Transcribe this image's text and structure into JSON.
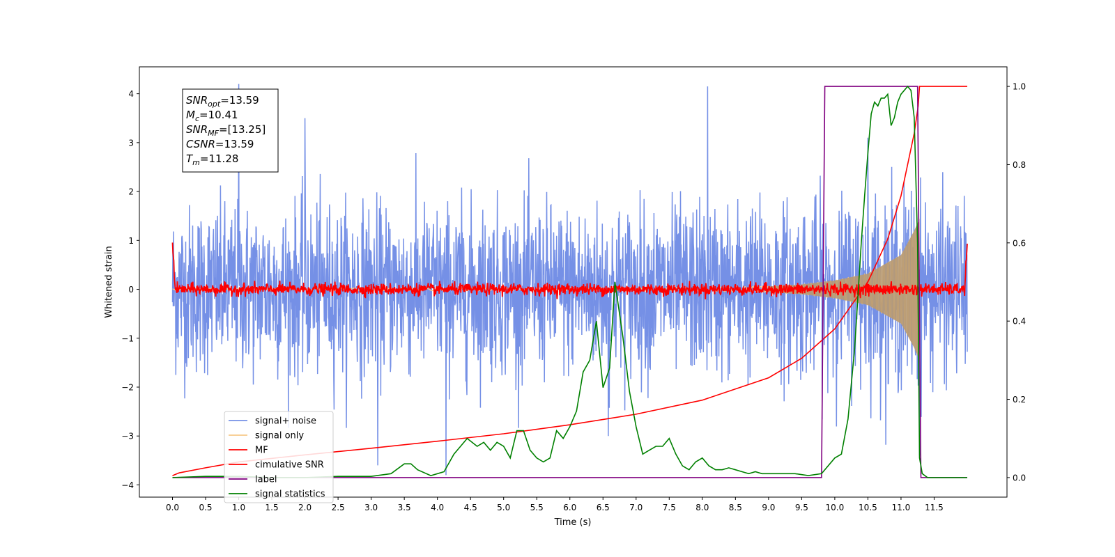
{
  "chart_data": {
    "type": "line",
    "xlabel": "Time (s)",
    "ylabel": "Whitened strain",
    "xlim": [
      -0.5,
      12.6
    ],
    "ylim": [
      -4.25,
      4.55
    ],
    "y2lim": [
      -0.05,
      1.05
    ],
    "x_ticks": [
      0.0,
      0.5,
      1.0,
      1.5,
      2.0,
      2.5,
      3.0,
      3.5,
      4.0,
      4.5,
      5.0,
      5.5,
      6.0,
      6.5,
      7.0,
      7.5,
      8.0,
      8.5,
      9.0,
      9.5,
      10.0,
      10.5,
      11.0,
      11.5
    ],
    "x_tick_labels": [
      "0.0",
      "0.5",
      "1.0",
      "1.5",
      "2.0",
      "2.5",
      "3.0",
      "3.5",
      "4.0",
      "4.5",
      "5.0",
      "5.5",
      "6.0",
      "6.5",
      "7.0",
      "7.5",
      "8.0",
      "8.5",
      "9.0",
      "9.5",
      "10.0",
      "10.5",
      "11.0",
      "11.5"
    ],
    "y_ticks": [
      -4,
      -3,
      -2,
      -1,
      0,
      1,
      2,
      3,
      4
    ],
    "y_tick_labels": [
      "−4",
      "−3",
      "−2",
      "−1",
      "0",
      "1",
      "2",
      "3",
      "4"
    ],
    "y2_ticks": [
      0.0,
      0.2,
      0.4,
      0.6,
      0.8,
      1.0
    ],
    "y2_tick_labels": [
      "0.0",
      "0.2",
      "0.4",
      "0.6",
      "0.8",
      "1.0"
    ],
    "legend_position": "lower-left",
    "annotation": {
      "lines": [
        {
          "base": "SNR",
          "sub": "opt",
          "value": "=13.59"
        },
        {
          "base": "M",
          "sub": "c",
          "value": "=10.41"
        },
        {
          "base": "SNR",
          "sub": "MF",
          "value": "=[13.25]"
        },
        {
          "base": "CSNR",
          "sub": "",
          "value": "=13.59"
        },
        {
          "base": "T",
          "sub": "m",
          "value": "=11.28"
        }
      ]
    },
    "series": [
      {
        "name": "signal+ noise",
        "color": "#7590e6",
        "axis": "left",
        "kind": "noise",
        "envelope_x": [
          0,
          4,
          8,
          10,
          11,
          11.28,
          11.3,
          12
        ],
        "envelope_upper": [
          2.1,
          2.1,
          2.1,
          2.2,
          2.4,
          2.8,
          2.2,
          2.1
        ],
        "envelope_lower": [
          -2.1,
          -2.1,
          -2.1,
          -2.2,
          -2.4,
          -2.8,
          -2.2,
          -2.1
        ],
        "spikes": [
          [
            1.0,
            4.2
          ],
          [
            2.0,
            3.5
          ],
          [
            4.13,
            -3.8
          ],
          [
            8.08,
            4.15
          ],
          [
            6.58,
            -3.0
          ],
          [
            11.28,
            -3.4
          ],
          [
            10.5,
            3.1
          ],
          [
            3.1,
            -3.6
          ]
        ]
      },
      {
        "name": "signal only",
        "color": "#f7c98a",
        "axis": "left",
        "kind": "chirp",
        "amplitude_x": [
          0,
          6,
          8,
          9,
          9.5,
          10,
          10.5,
          11,
          11.2,
          11.28
        ],
        "amplitude": [
          0.02,
          0.03,
          0.04,
          0.06,
          0.1,
          0.18,
          0.32,
          0.7,
          1.2,
          1.45
        ]
      },
      {
        "name": "MF",
        "color": "#ff0000",
        "axis": "left",
        "kind": "noise-small",
        "x_range": [
          0,
          12
        ],
        "amplitude": 0.12,
        "edge_start": 1.0,
        "edge_end": 0.9
      },
      {
        "name": "cimulative SNR",
        "color": "#ff0000",
        "axis": "right",
        "x": [
          0,
          0.1,
          0.5,
          1,
          2,
          3,
          4,
          5,
          6,
          7,
          8,
          9,
          9.5,
          10,
          10.5,
          10.8,
          11,
          11.1,
          11.2,
          11.26,
          11.28,
          12
        ],
        "y": [
          0.005,
          0.012,
          0.025,
          0.04,
          0.058,
          0.075,
          0.093,
          0.112,
          0.135,
          0.162,
          0.198,
          0.255,
          0.305,
          0.38,
          0.5,
          0.61,
          0.72,
          0.8,
          0.88,
          0.95,
          1.0,
          1.0
        ]
      },
      {
        "name": "label",
        "color": "#800080",
        "axis": "right",
        "x": [
          0,
          9.8,
          9.85,
          11.25,
          11.3,
          12
        ],
        "y": [
          0,
          0,
          1,
          1,
          0,
          0
        ]
      },
      {
        "name": "signal statistics",
        "color": "#008000",
        "axis": "right",
        "x": [
          0,
          0.5,
          1,
          1.5,
          2,
          2.5,
          3.0,
          3.3,
          3.5,
          3.6,
          3.7,
          3.9,
          4.1,
          4.25,
          4.35,
          4.45,
          4.6,
          4.7,
          4.8,
          4.9,
          5.0,
          5.1,
          5.2,
          5.3,
          5.4,
          5.5,
          5.6,
          5.7,
          5.8,
          5.9,
          6.0,
          6.1,
          6.2,
          6.3,
          6.4,
          6.5,
          6.6,
          6.68,
          6.8,
          6.9,
          7.0,
          7.1,
          7.2,
          7.3,
          7.4,
          7.5,
          7.6,
          7.7,
          7.8,
          7.9,
          8.0,
          8.1,
          8.2,
          8.3,
          8.4,
          8.5,
          8.6,
          8.7,
          8.8,
          8.9,
          9.0,
          9.2,
          9.4,
          9.6,
          9.8,
          10.0,
          10.1,
          10.2,
          10.3,
          10.4,
          10.45,
          10.5,
          10.55,
          10.6,
          10.65,
          10.7,
          10.75,
          10.8,
          10.85,
          10.9,
          10.95,
          11.0,
          11.05,
          11.1,
          11.15,
          11.2,
          11.25,
          11.28,
          11.32,
          11.4,
          11.6,
          12.0
        ],
        "y": [
          0.0,
          0.003,
          0.003,
          0.0,
          0.0,
          0.003,
          0.003,
          0.01,
          0.035,
          0.035,
          0.02,
          0.005,
          0.015,
          0.06,
          0.08,
          0.1,
          0.08,
          0.09,
          0.07,
          0.09,
          0.08,
          0.05,
          0.12,
          0.12,
          0.07,
          0.05,
          0.04,
          0.05,
          0.12,
          0.1,
          0.13,
          0.17,
          0.27,
          0.3,
          0.4,
          0.23,
          0.28,
          0.5,
          0.36,
          0.22,
          0.13,
          0.06,
          0.07,
          0.08,
          0.08,
          0.1,
          0.06,
          0.03,
          0.02,
          0.04,
          0.05,
          0.03,
          0.02,
          0.02,
          0.025,
          0.02,
          0.015,
          0.01,
          0.015,
          0.01,
          0.01,
          0.01,
          0.01,
          0.005,
          0.01,
          0.05,
          0.06,
          0.15,
          0.33,
          0.6,
          0.72,
          0.83,
          0.93,
          0.96,
          0.95,
          0.97,
          0.97,
          0.98,
          0.9,
          0.92,
          0.96,
          0.98,
          0.99,
          1.0,
          0.99,
          0.92,
          0.6,
          0.05,
          0.01,
          0.0,
          0.0,
          0.0
        ]
      }
    ]
  }
}
